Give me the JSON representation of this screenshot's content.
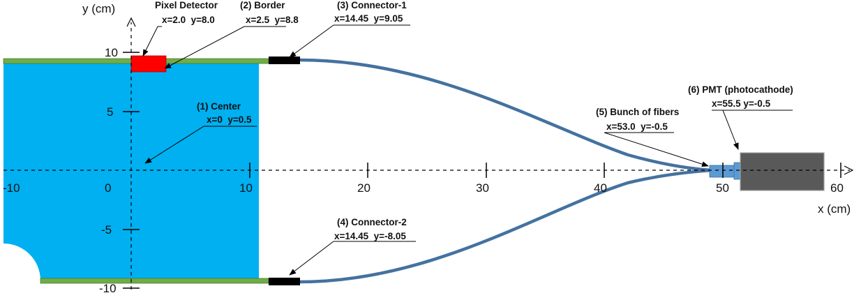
{
  "axes": {
    "y_title": "y (cm)",
    "x_title": "x (cm)",
    "x_tick_labels": [
      "-10",
      "0",
      "10",
      "20",
      "30",
      "40",
      "50",
      "60"
    ],
    "y_tick_labels": [
      "10",
      "5",
      "-5",
      "-10"
    ]
  },
  "annotations": {
    "pixel_detector": {
      "title": "Pixel Detector",
      "coords": "x=2.0  y=8.0"
    },
    "border": {
      "title": "(2) Border",
      "coords": "x=2.5  y=8.8"
    },
    "connector1": {
      "title": "(3) Connector-1",
      "coords": "x=14.45  y=9.05"
    },
    "center": {
      "title": "(1) Center",
      "coords": "x=0  y=0.5"
    },
    "bunch_of_fibers": {
      "title": "(5) Bunch of fibers",
      "coords": "x=53.0  y=-0.5"
    },
    "pmt": {
      "title": "(6) PMT (photocathode)",
      "coords": "x=55.5 y=-0.5"
    },
    "connector2": {
      "title": "(4) Connector-2",
      "coords": "x=14.45  y=-8.05"
    }
  },
  "colors": {
    "scintillator": "#00b0f0",
    "border_strip": "#70ad47",
    "pixel_detector": "#ff0000",
    "connector": "#000000",
    "fiber": "#4472a0",
    "pmt_body": "#595959",
    "pmt_window": "#5b9bd5"
  }
}
